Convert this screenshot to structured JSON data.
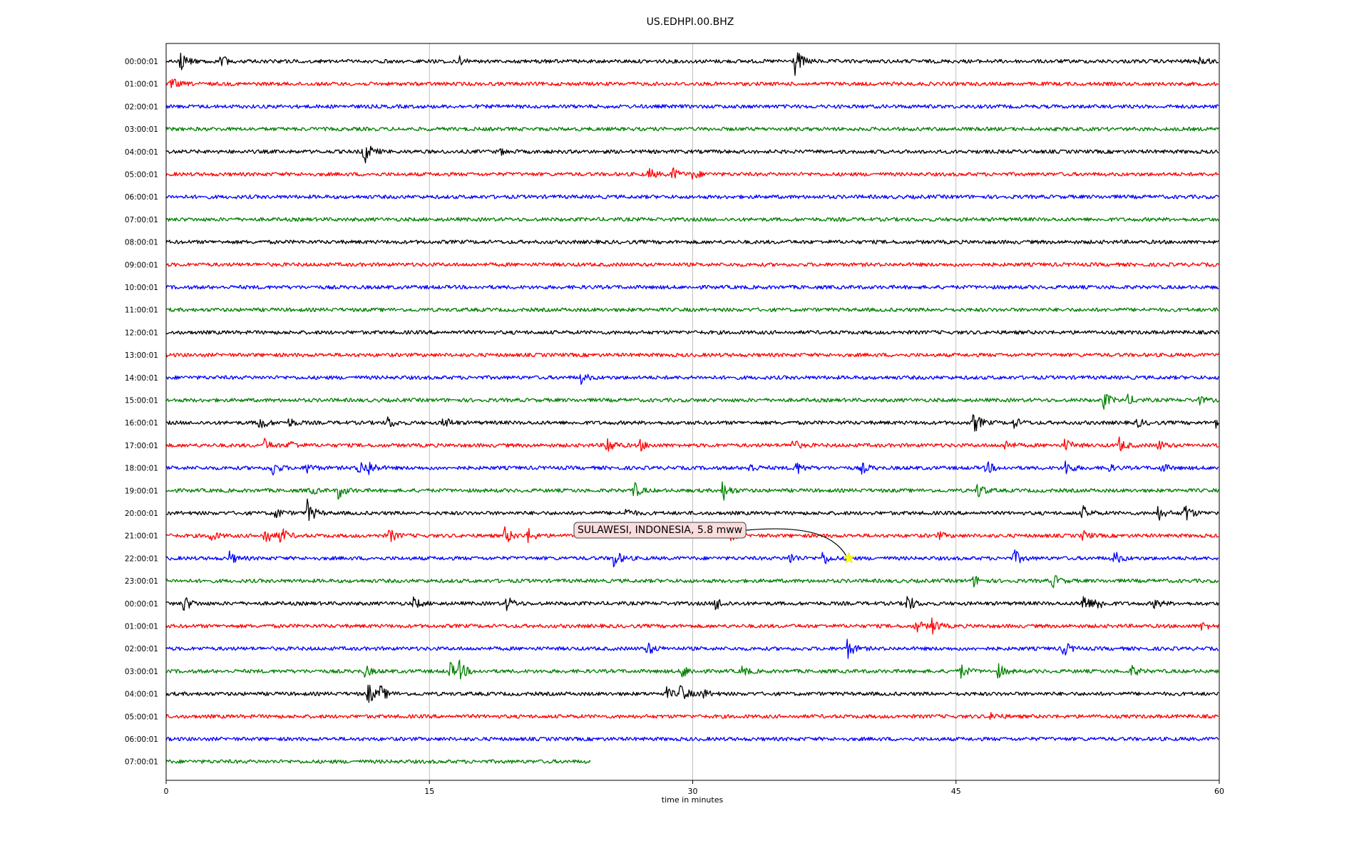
{
  "chart_data": {
    "type": "line",
    "title": "US.EDHPI.00.BHZ",
    "xlabel": "time in minutes",
    "ylabel": "",
    "xlim": [
      0,
      60
    ],
    "x_ticks": [
      0,
      15,
      30,
      45,
      60
    ],
    "grid": true,
    "trace_colors": [
      "#000000",
      "#ff0000",
      "#0000ff",
      "#008000"
    ],
    "rows": [
      {
        "label": "00:00:01",
        "end_minute": 60,
        "events": [
          {
            "t": 0.8,
            "a": 14
          },
          {
            "t": 3.1,
            "a": 9
          },
          {
            "t": 16.7,
            "a": 6
          },
          {
            "t": 35.8,
            "a": 22
          },
          {
            "t": 58.9,
            "a": 8
          }
        ]
      },
      {
        "label": "01:00:01",
        "end_minute": 60,
        "events": [
          {
            "t": 0.3,
            "a": 8
          }
        ]
      },
      {
        "label": "02:00:01",
        "end_minute": 60,
        "events": []
      },
      {
        "label": "03:00:01",
        "end_minute": 60,
        "events": []
      },
      {
        "label": "04:00:01",
        "end_minute": 60,
        "events": [
          {
            "t": 11.2,
            "a": 24
          },
          {
            "t": 19.0,
            "a": 4
          }
        ]
      },
      {
        "label": "05:00:01",
        "end_minute": 60,
        "events": [
          {
            "t": 27.5,
            "a": 8
          },
          {
            "t": 28.8,
            "a": 10
          },
          {
            "t": 30.0,
            "a": 7
          }
        ]
      },
      {
        "label": "06:00:01",
        "end_minute": 60,
        "events": []
      },
      {
        "label": "07:00:01",
        "end_minute": 60,
        "events": []
      },
      {
        "label": "08:00:01",
        "end_minute": 60,
        "events": []
      },
      {
        "label": "09:00:01",
        "end_minute": 60,
        "events": []
      },
      {
        "label": "10:00:01",
        "end_minute": 60,
        "events": []
      },
      {
        "label": "11:00:01",
        "end_minute": 60,
        "events": []
      },
      {
        "label": "12:00:01",
        "end_minute": 60,
        "events": []
      },
      {
        "label": "13:00:01",
        "end_minute": 60,
        "events": []
      },
      {
        "label": "14:00:01",
        "end_minute": 60,
        "events": [
          {
            "t": 23.6,
            "a": 8
          }
        ]
      },
      {
        "label": "15:00:01",
        "end_minute": 60,
        "events": [
          {
            "t": 53.4,
            "a": 12
          },
          {
            "t": 54.8,
            "a": 7
          },
          {
            "t": 58.7,
            "a": 8
          }
        ]
      },
      {
        "label": "16:00:01",
        "end_minute": 60,
        "events": [
          {
            "t": 5.3,
            "a": 12
          },
          {
            "t": 7.0,
            "a": 6
          },
          {
            "t": 12.6,
            "a": 9
          },
          {
            "t": 15.8,
            "a": 9
          },
          {
            "t": 46.0,
            "a": 16
          },
          {
            "t": 48.3,
            "a": 7
          },
          {
            "t": 55.3,
            "a": 6
          },
          {
            "t": 59.8,
            "a": 7
          }
        ]
      },
      {
        "label": "17:00:01",
        "end_minute": 60,
        "events": [
          {
            "t": 5.6,
            "a": 8
          },
          {
            "t": 7.0,
            "a": 8
          },
          {
            "t": 25.1,
            "a": 15
          },
          {
            "t": 27.0,
            "a": 7
          },
          {
            "t": 35.6,
            "a": 10
          },
          {
            "t": 47.8,
            "a": 7
          },
          {
            "t": 51.2,
            "a": 9
          },
          {
            "t": 54.3,
            "a": 10
          },
          {
            "t": 56.5,
            "a": 7
          }
        ]
      },
      {
        "label": "18:00:01",
        "end_minute": 60,
        "events": [
          {
            "t": 6.0,
            "a": 12
          },
          {
            "t": 8.0,
            "a": 8
          },
          {
            "t": 10.9,
            "a": 14
          },
          {
            "t": 11.5,
            "a": 10
          },
          {
            "t": 33.2,
            "a": 8
          },
          {
            "t": 35.8,
            "a": 12
          },
          {
            "t": 39.6,
            "a": 8
          },
          {
            "t": 46.7,
            "a": 10
          },
          {
            "t": 51.2,
            "a": 12
          },
          {
            "t": 53.5,
            "a": 8
          },
          {
            "t": 56.7,
            "a": 6
          }
        ]
      },
      {
        "label": "19:00:01",
        "end_minute": 60,
        "events": [
          {
            "t": 8.2,
            "a": 6
          },
          {
            "t": 9.8,
            "a": 12
          },
          {
            "t": 26.6,
            "a": 13
          },
          {
            "t": 31.7,
            "a": 15
          },
          {
            "t": 46.2,
            "a": 12
          }
        ]
      },
      {
        "label": "20:00:01",
        "end_minute": 60,
        "events": [
          {
            "t": 6.2,
            "a": 8
          },
          {
            "t": 8.0,
            "a": 20
          },
          {
            "t": 26.2,
            "a": 6
          },
          {
            "t": 52.2,
            "a": 10
          },
          {
            "t": 56.5,
            "a": 10
          },
          {
            "t": 58.0,
            "a": 15
          }
        ]
      },
      {
        "label": "21:00:01",
        "end_minute": 60,
        "events": [
          {
            "t": 2.5,
            "a": 8
          },
          {
            "t": 5.6,
            "a": 14
          },
          {
            "t": 6.5,
            "a": 12
          },
          {
            "t": 12.7,
            "a": 10
          },
          {
            "t": 19.3,
            "a": 13
          },
          {
            "t": 20.6,
            "a": 10
          },
          {
            "t": 32.0,
            "a": 10
          },
          {
            "t": 44.0,
            "a": 5
          },
          {
            "t": 52.2,
            "a": 7
          }
        ]
      },
      {
        "label": "22:00:01",
        "end_minute": 60,
        "events": [
          {
            "t": 3.6,
            "a": 9
          },
          {
            "t": 25.5,
            "a": 14
          },
          {
            "t": 35.5,
            "a": 8
          },
          {
            "t": 37.4,
            "a": 10
          },
          {
            "t": 48.3,
            "a": 12
          },
          {
            "t": 54.0,
            "a": 10
          }
        ]
      },
      {
        "label": "23:00:01",
        "end_minute": 60,
        "events": [
          {
            "t": 46.0,
            "a": 8
          },
          {
            "t": 50.5,
            "a": 10
          }
        ]
      },
      {
        "label": "00:00:01",
        "end_minute": 60,
        "events": [
          {
            "t": 1.0,
            "a": 12
          },
          {
            "t": 14.1,
            "a": 8
          },
          {
            "t": 19.4,
            "a": 10
          },
          {
            "t": 31.3,
            "a": 10
          },
          {
            "t": 42.2,
            "a": 14
          },
          {
            "t": 52.2,
            "a": 17
          },
          {
            "t": 53.0,
            "a": 10
          },
          {
            "t": 56.3,
            "a": 7
          }
        ]
      },
      {
        "label": "01:00:01",
        "end_minute": 60,
        "events": [
          {
            "t": 42.7,
            "a": 10
          },
          {
            "t": 43.6,
            "a": 12
          },
          {
            "t": 59.0,
            "a": 6
          }
        ]
      },
      {
        "label": "02:00:01",
        "end_minute": 60,
        "events": [
          {
            "t": 27.4,
            "a": 10
          },
          {
            "t": 38.8,
            "a": 14
          },
          {
            "t": 51.1,
            "a": 12
          }
        ]
      },
      {
        "label": "03:00:01",
        "end_minute": 60,
        "events": [
          {
            "t": 11.3,
            "a": 8
          },
          {
            "t": 16.1,
            "a": 14
          },
          {
            "t": 16.7,
            "a": 12
          },
          {
            "t": 29.4,
            "a": 10
          },
          {
            "t": 32.8,
            "a": 7
          },
          {
            "t": 45.2,
            "a": 12
          },
          {
            "t": 47.4,
            "a": 10
          },
          {
            "t": 55.0,
            "a": 8
          }
        ]
      },
      {
        "label": "04:00:01",
        "end_minute": 60,
        "events": [
          {
            "t": 11.5,
            "a": 16
          },
          {
            "t": 12.2,
            "a": 10
          },
          {
            "t": 28.5,
            "a": 8
          },
          {
            "t": 29.3,
            "a": 14
          },
          {
            "t": 30.5,
            "a": 8
          }
        ]
      },
      {
        "label": "05:00:01",
        "end_minute": 60,
        "events": [
          {
            "t": 47.0,
            "a": 6
          }
        ]
      },
      {
        "label": "06:00:01",
        "end_minute": 60,
        "events": []
      },
      {
        "label": "07:00:01",
        "end_minute": 24.2,
        "events": []
      }
    ],
    "annotation": {
      "text": "SULAWESI, INDONESIA, 5.8 mww",
      "row_index": 22,
      "minute": 38.9,
      "marker": "star",
      "marker_color": "#ffff00"
    }
  }
}
